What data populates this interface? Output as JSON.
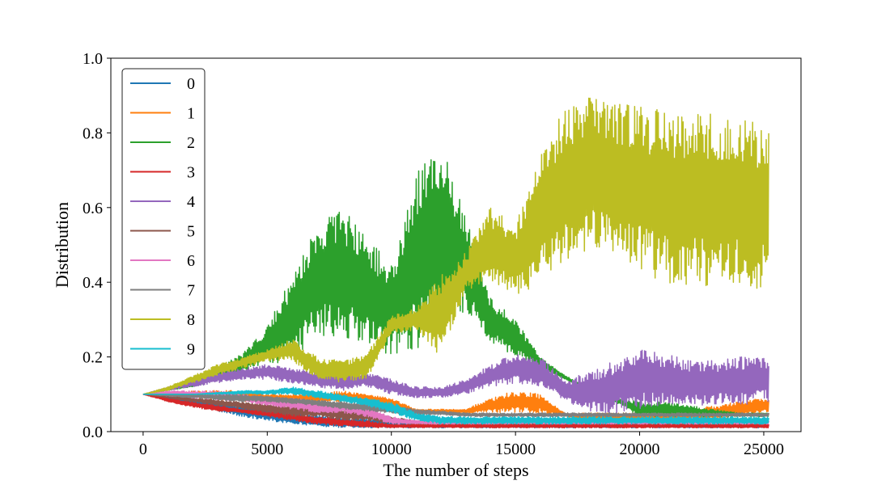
{
  "chart_data": {
    "type": "line",
    "title": "",
    "xlabel": "The number of steps",
    "ylabel": "Distribution",
    "xlim": [
      -1300,
      26500
    ],
    "ylim": [
      0.0,
      1.0
    ],
    "xticks": [
      0,
      5000,
      10000,
      15000,
      20000,
      25000
    ],
    "xtick_labels": [
      "0",
      "5000",
      "10000",
      "15000",
      "20000",
      "25000"
    ],
    "yticks": [
      0.0,
      0.2,
      0.4,
      0.6,
      0.8,
      1.0
    ],
    "ytick_labels": [
      "0.0",
      "0.2",
      "0.4",
      "0.6",
      "0.8",
      "1.0"
    ],
    "grid": false,
    "legend_position": "upper-left",
    "x": [
      0,
      1000,
      2000,
      3000,
      4000,
      5000,
      6000,
      7000,
      8000,
      9000,
      10000,
      11000,
      12000,
      13000,
      14000,
      15000,
      16000,
      17000,
      18000,
      19000,
      20000,
      21000,
      22000,
      23000,
      24000,
      25000
    ],
    "series": [
      {
        "name": "0",
        "color": "#1f77b4",
        "low": [
          0.1,
          0.085,
          0.07,
          0.055,
          0.04,
          0.03,
          0.02,
          0.015,
          0.01,
          0.01,
          0.01,
          0.01,
          0.01,
          0.01,
          0.01,
          0.01,
          0.01,
          0.01,
          0.01,
          0.01,
          0.01,
          0.01,
          0.01,
          0.01,
          0.01,
          0.01
        ],
        "high": [
          0.1,
          0.095,
          0.09,
          0.08,
          0.07,
          0.06,
          0.05,
          0.045,
          0.04,
          0.035,
          0.03,
          0.02,
          0.02,
          0.02,
          0.02,
          0.02,
          0.02,
          0.02,
          0.02,
          0.02,
          0.02,
          0.02,
          0.02,
          0.02,
          0.02,
          0.02
        ]
      },
      {
        "name": "1",
        "color": "#ff7f0e",
        "low": [
          0.1,
          0.095,
          0.09,
          0.085,
          0.08,
          0.08,
          0.08,
          0.08,
          0.08,
          0.08,
          0.06,
          0.05,
          0.05,
          0.05,
          0.05,
          0.05,
          0.05,
          0.04,
          0.03,
          0.03,
          0.03,
          0.03,
          0.03,
          0.03,
          0.04,
          0.05
        ],
        "high": [
          0.1,
          0.105,
          0.11,
          0.11,
          0.11,
          0.1,
          0.1,
          0.1,
          0.11,
          0.1,
          0.09,
          0.06,
          0.06,
          0.06,
          0.09,
          0.11,
          0.1,
          0.05,
          0.05,
          0.05,
          0.05,
          0.05,
          0.06,
          0.07,
          0.08,
          0.09
        ]
      },
      {
        "name": "2",
        "color": "#2ca02c",
        "low": [
          0.1,
          0.11,
          0.12,
          0.14,
          0.16,
          0.18,
          0.19,
          0.26,
          0.25,
          0.24,
          0.2,
          0.22,
          0.28,
          0.32,
          0.24,
          0.2,
          0.17,
          0.14,
          0.1,
          0.08,
          0.04,
          0.04,
          0.04,
          0.04,
          0.04,
          0.04
        ],
        "high": [
          0.1,
          0.115,
          0.13,
          0.17,
          0.21,
          0.28,
          0.42,
          0.55,
          0.6,
          0.52,
          0.45,
          0.7,
          0.77,
          0.58,
          0.36,
          0.3,
          0.2,
          0.15,
          0.12,
          0.09,
          0.08,
          0.08,
          0.07,
          0.06,
          0.05,
          0.05
        ]
      },
      {
        "name": "3",
        "color": "#d62728",
        "low": [
          0.1,
          0.08,
          0.065,
          0.055,
          0.05,
          0.04,
          0.03,
          0.02,
          0.015,
          0.01,
          0.01,
          0.01,
          0.01,
          0.01,
          0.01,
          0.01,
          0.01,
          0.01,
          0.01,
          0.01,
          0.01,
          0.01,
          0.01,
          0.01,
          0.01,
          0.01
        ],
        "high": [
          0.1,
          0.09,
          0.08,
          0.07,
          0.06,
          0.055,
          0.05,
          0.04,
          0.035,
          0.03,
          0.02,
          0.02,
          0.02,
          0.02,
          0.02,
          0.02,
          0.02,
          0.02,
          0.02,
          0.02,
          0.02,
          0.02,
          0.02,
          0.02,
          0.02,
          0.02
        ]
      },
      {
        "name": "4",
        "color": "#9467bd",
        "low": [
          0.1,
          0.11,
          0.12,
          0.13,
          0.14,
          0.14,
          0.13,
          0.12,
          0.11,
          0.12,
          0.1,
          0.09,
          0.09,
          0.1,
          0.12,
          0.13,
          0.12,
          0.08,
          0.05,
          0.05,
          0.06,
          0.07,
          0.07,
          0.07,
          0.07,
          0.08
        ],
        "high": [
          0.1,
          0.12,
          0.14,
          0.16,
          0.17,
          0.18,
          0.17,
          0.16,
          0.16,
          0.16,
          0.14,
          0.12,
          0.12,
          0.14,
          0.18,
          0.21,
          0.2,
          0.14,
          0.16,
          0.19,
          0.22,
          0.21,
          0.19,
          0.19,
          0.2,
          0.2
        ]
      },
      {
        "name": "5",
        "color": "#8c564b",
        "low": [
          0.1,
          0.09,
          0.08,
          0.07,
          0.06,
          0.05,
          0.04,
          0.04,
          0.03,
          0.03,
          0.02,
          0.02,
          0.02,
          0.02,
          0.02,
          0.02,
          0.02,
          0.02,
          0.02,
          0.02,
          0.02,
          0.02,
          0.02,
          0.02,
          0.02,
          0.02
        ],
        "high": [
          0.1,
          0.1,
          0.09,
          0.085,
          0.08,
          0.075,
          0.07,
          0.065,
          0.06,
          0.05,
          0.04,
          0.03,
          0.03,
          0.03,
          0.03,
          0.03,
          0.03,
          0.03,
          0.03,
          0.03,
          0.03,
          0.03,
          0.03,
          0.03,
          0.03,
          0.03
        ]
      },
      {
        "name": "6",
        "color": "#e377c2",
        "low": [
          0.1,
          0.095,
          0.09,
          0.085,
          0.08,
          0.07,
          0.06,
          0.05,
          0.05,
          0.04,
          0.02,
          0.02,
          0.02,
          0.02,
          0.02,
          0.02,
          0.02,
          0.02,
          0.02,
          0.02,
          0.02,
          0.02,
          0.02,
          0.02,
          0.02,
          0.02
        ],
        "high": [
          0.1,
          0.11,
          0.11,
          0.11,
          0.1,
          0.09,
          0.09,
          0.08,
          0.08,
          0.07,
          0.04,
          0.03,
          0.03,
          0.03,
          0.03,
          0.03,
          0.03,
          0.03,
          0.03,
          0.03,
          0.03,
          0.03,
          0.03,
          0.03,
          0.03,
          0.03
        ]
      },
      {
        "name": "7",
        "color": "#7f7f7f",
        "low": [
          0.1,
          0.095,
          0.09,
          0.085,
          0.08,
          0.08,
          0.075,
          0.07,
          0.06,
          0.055,
          0.05,
          0.045,
          0.045,
          0.04,
          0.04,
          0.04,
          0.04,
          0.04,
          0.04,
          0.04,
          0.04,
          0.04,
          0.04,
          0.04,
          0.04,
          0.04
        ],
        "high": [
          0.1,
          0.1,
          0.1,
          0.1,
          0.1,
          0.095,
          0.09,
          0.085,
          0.08,
          0.075,
          0.07,
          0.06,
          0.055,
          0.05,
          0.05,
          0.05,
          0.05,
          0.05,
          0.05,
          0.05,
          0.05,
          0.05,
          0.05,
          0.05,
          0.05,
          0.05
        ]
      },
      {
        "name": "8",
        "color": "#bcbd22",
        "low": [
          0.1,
          0.11,
          0.13,
          0.15,
          0.17,
          0.19,
          0.19,
          0.14,
          0.13,
          0.14,
          0.26,
          0.27,
          0.2,
          0.37,
          0.4,
          0.36,
          0.4,
          0.45,
          0.48,
          0.47,
          0.43,
          0.4,
          0.39,
          0.39,
          0.39,
          0.38
        ],
        "high": [
          0.1,
          0.12,
          0.15,
          0.18,
          0.2,
          0.22,
          0.25,
          0.2,
          0.19,
          0.21,
          0.31,
          0.33,
          0.42,
          0.48,
          0.6,
          0.56,
          0.74,
          0.87,
          0.9,
          0.88,
          0.87,
          0.86,
          0.86,
          0.85,
          0.84,
          0.82
        ]
      },
      {
        "name": "9",
        "color": "#17becf",
        "low": [
          0.1,
          0.1,
          0.1,
          0.1,
          0.1,
          0.1,
          0.1,
          0.09,
          0.08,
          0.07,
          0.05,
          0.03,
          0.02,
          0.02,
          0.02,
          0.02,
          0.02,
          0.02,
          0.02,
          0.02,
          0.02,
          0.02,
          0.02,
          0.02,
          0.02,
          0.02
        ],
        "high": [
          0.1,
          0.1,
          0.1,
          0.105,
          0.11,
          0.11,
          0.12,
          0.11,
          0.1,
          0.09,
          0.08,
          0.05,
          0.04,
          0.04,
          0.04,
          0.04,
          0.04,
          0.04,
          0.04,
          0.04,
          0.04,
          0.04,
          0.04,
          0.04,
          0.04,
          0.04
        ]
      }
    ]
  }
}
